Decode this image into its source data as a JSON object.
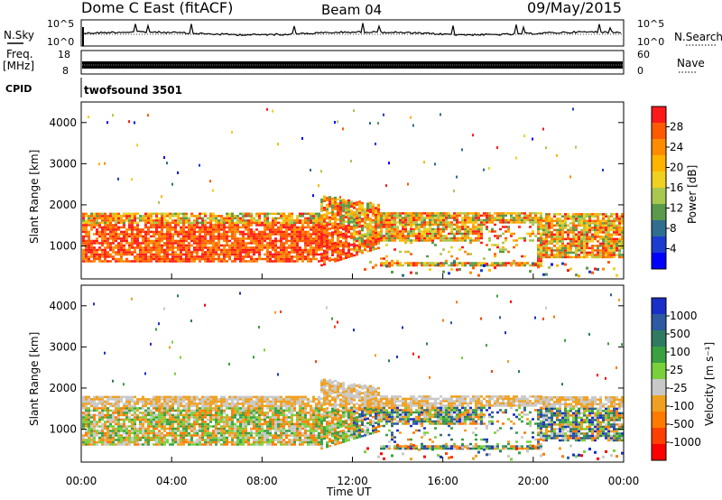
{
  "header": {
    "station": "Dome C East (fitACF)",
    "beam": "Beam 04",
    "date": "09/May/2015"
  },
  "side_labels": {
    "nsky": "N.Sky",
    "freq_line1": "Freq.",
    "freq_line2": "[MHz]",
    "cpid": "CPID",
    "nsearch": "N.Search",
    "nave": "Nave"
  },
  "top_panels": {
    "noise_left_ticks": [
      "10^5",
      "10^0"
    ],
    "noise_right_ticks": [
      "10^5",
      "10^0"
    ],
    "freq_left_ticks": [
      "18",
      "8"
    ],
    "nave_right_ticks": [
      "60",
      "0"
    ],
    "cpid_text": "twofsound 3501"
  },
  "chart_data": [
    {
      "type": "heatmap",
      "name": "power",
      "ylabel": "Slant Range [km]",
      "xlabel": "",
      "yticks": [
        1000,
        2000,
        3000,
        4000
      ],
      "xticks": [
        "00:00",
        "04:00",
        "08:00",
        "12:00",
        "16:00",
        "20:00",
        "00:00"
      ],
      "ylim": [
        200,
        4500
      ],
      "colorbar": {
        "label": "Power [dB]",
        "ticks": [
          "28",
          "24",
          "20",
          "16",
          "12",
          "8",
          "4"
        ],
        "colors": [
          "#ff1a1a",
          "#ff5a00",
          "#ff8c00",
          "#ffb400",
          "#f0d020",
          "#a8c850",
          "#5a9a4a",
          "#2f6e8e",
          "#1a3ccf",
          "#0000ff"
        ]
      }
    },
    {
      "type": "heatmap",
      "name": "velocity",
      "ylabel": "Slant Range [km]",
      "xlabel": "Time UT",
      "yticks": [
        1000,
        2000,
        3000,
        4000
      ],
      "xticks": [
        "00:00",
        "04:00",
        "08:00",
        "12:00",
        "16:00",
        "20:00",
        "00:00"
      ],
      "ylim": [
        200,
        4500
      ],
      "colorbar": {
        "label": "Velocity [m s⁻¹]",
        "ticks": [
          "1000",
          "500",
          "100",
          "25",
          "-25",
          "-100",
          "-500",
          "-1000"
        ],
        "colors": [
          "#1a2ec8",
          "#2d5aa0",
          "#2f7a60",
          "#3aa040",
          "#7ad03a",
          "#c8c8c8",
          "#f0a020",
          "#ff7a00",
          "#ff4000",
          "#ff0000"
        ]
      }
    }
  ]
}
